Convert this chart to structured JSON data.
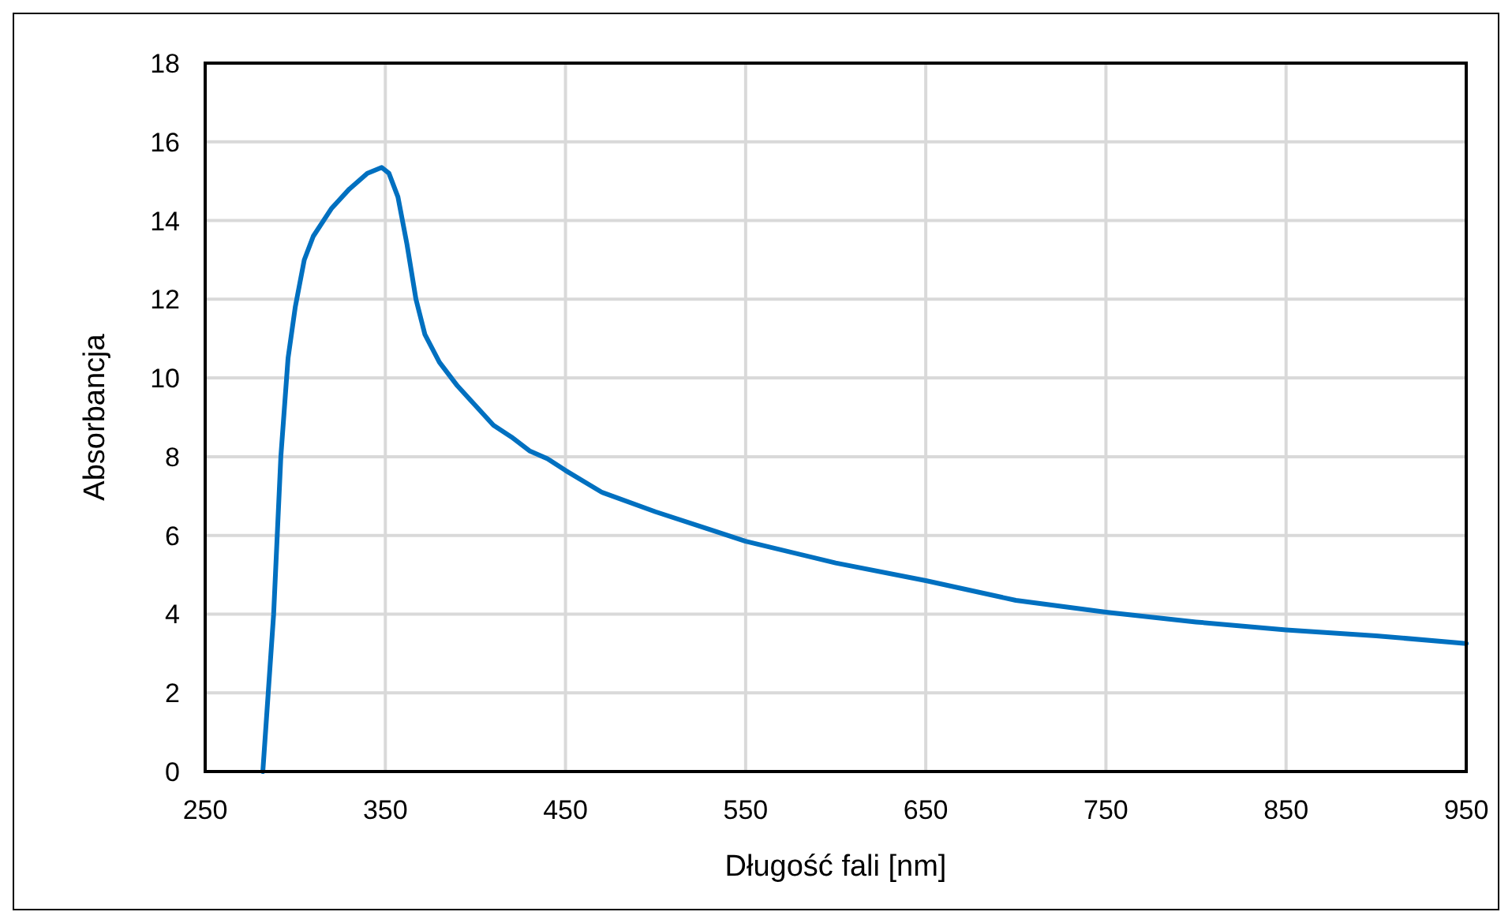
{
  "chart_data": {
    "type": "line",
    "xlabel": "Długość fali [nm]",
    "ylabel": "Absorbancja",
    "xlim": [
      250,
      950
    ],
    "xticks": [
      250,
      350,
      450,
      550,
      650,
      750,
      850,
      950
    ],
    "ylim": [
      0,
      18
    ],
    "yticks": [
      0,
      2,
      4,
      6,
      8,
      10,
      12,
      14,
      16,
      18
    ],
    "grid": true,
    "marker": "none",
    "line_style": "solid",
    "x": [
      282,
      285,
      288,
      292,
      296,
      300,
      305,
      310,
      320,
      330,
      340,
      348,
      352,
      357,
      362,
      367,
      372,
      380,
      390,
      400,
      410,
      420,
      430,
      440,
      450,
      470,
      500,
      530,
      550,
      600,
      650,
      700,
      750,
      800,
      850,
      900,
      950
    ],
    "series": [
      {
        "color": "#0070c0",
        "values": [
          0,
          2,
          4,
          8,
          10.5,
          11.8,
          13,
          13.6,
          14.3,
          14.8,
          15.2,
          15.35,
          15.2,
          14.6,
          13.4,
          12,
          11.1,
          10.4,
          9.8,
          9.3,
          8.8,
          8.5,
          8.15,
          7.95,
          7.65,
          7.1,
          6.6,
          6.15,
          5.85,
          5.3,
          4.85,
          4.35,
          4.05,
          3.8,
          3.6,
          3.45,
          3.25
        ]
      }
    ]
  }
}
